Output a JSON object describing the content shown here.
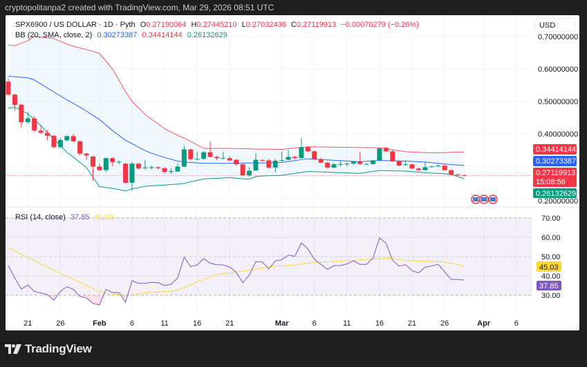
{
  "header": {
    "caption": "cryptopolitanpa2 created with TradingView.com, Mar 29, 2026 08:51 UTC"
  },
  "legend": {
    "symbol": "SPX6900 / US DOLLAR · 1D · Pyth",
    "o_label": "O",
    "o": "0.27190064",
    "h_label": "H",
    "h": "0.27445210",
    "l_label": "L",
    "l": "0.27032436",
    "c_label": "C",
    "c": "0.27119913",
    "change": "−0.00070279 (−0.26%)",
    "bb_label": "BB (20, SMA, close, 2)",
    "bb_basis": "0.30273387",
    "bb_upper": "0.34414144",
    "bb_lower": "0.26132629",
    "rsi_label": "RSI (14, close)",
    "rsi_value": "37.85",
    "rsi_ma_value": "45.03"
  },
  "currency_button": "USD",
  "price_axis": {
    "ticks": [
      {
        "v": 0.7,
        "label": "0.70000000"
      },
      {
        "v": 0.6,
        "label": "0.60000000"
      },
      {
        "v": 0.5,
        "label": "0.50000000"
      },
      {
        "v": 0.4,
        "label": "0.40000000"
      },
      {
        "v": 0.2,
        "label": "0.20000000"
      }
    ],
    "tags": {
      "bb_upper": "0.34414144",
      "bb_basis": "0.30273387",
      "last_price": "0.27119913",
      "countdown": "15:08:56",
      "bb_lower": "0.26132629"
    }
  },
  "rsi_axis": {
    "ticks": [
      {
        "v": 70,
        "label": "70.00"
      },
      {
        "v": 60,
        "label": "60.00"
      },
      {
        "v": 50,
        "label": "50.00"
      },
      {
        "v": 40,
        "label": "40.00"
      },
      {
        "v": 30,
        "label": "30.00"
      }
    ],
    "tags": {
      "rsi_ma": "45.03",
      "rsi": "37.85"
    }
  },
  "time_axis": {
    "ticks": [
      {
        "d": "01-21",
        "label": "21"
      },
      {
        "d": "01-26",
        "label": "26"
      },
      {
        "d": "02-01",
        "label": "Feb",
        "bold": true
      },
      {
        "d": "02-06",
        "label": "6"
      },
      {
        "d": "02-11",
        "label": "11"
      },
      {
        "d": "02-16",
        "label": "16"
      },
      {
        "d": "02-21",
        "label": "21"
      },
      {
        "d": "03-01",
        "label": "Mar",
        "bold": true
      },
      {
        "d": "03-06",
        "label": "6"
      },
      {
        "d": "03-11",
        "label": "11"
      },
      {
        "d": "03-16",
        "label": "16"
      },
      {
        "d": "03-21",
        "label": "21"
      },
      {
        "d": "03-26",
        "label": "26"
      },
      {
        "d": "04-01",
        "label": "Apr",
        "bold": true
      },
      {
        "d": "04-06",
        "label": "6"
      }
    ]
  },
  "colors": {
    "up": "#089981",
    "down": "#f23645",
    "bb_upper": "#f7525f",
    "bb_basis": "#2962ff",
    "bb_lower": "#089981",
    "rsi": "#7e57c2",
    "rsi_ma": "#fdd835",
    "frame": "#1e1e1e"
  },
  "footer": {
    "brand": "TradingView"
  },
  "chart_data": {
    "type": "candlestick",
    "year": 2026,
    "price_ylim": [
      0.2,
      0.7
    ],
    "candles": [
      {
        "d": "01-18",
        "o": 0.561,
        "h": 0.571,
        "l": 0.518,
        "c": 0.521
      },
      {
        "d": "01-19",
        "o": 0.521,
        "h": 0.524,
        "l": 0.471,
        "c": 0.489
      },
      {
        "d": "01-20",
        "o": 0.49,
        "h": 0.493,
        "l": 0.418,
        "c": 0.436
      },
      {
        "d": "01-21",
        "o": 0.436,
        "h": 0.467,
        "l": 0.432,
        "c": 0.448
      },
      {
        "d": "01-22",
        "o": 0.447,
        "h": 0.455,
        "l": 0.405,
        "c": 0.41
      },
      {
        "d": "01-23",
        "o": 0.41,
        "h": 0.428,
        "l": 0.4,
        "c": 0.403
      },
      {
        "d": "01-24",
        "o": 0.403,
        "h": 0.412,
        "l": 0.38,
        "c": 0.394
      },
      {
        "d": "01-25",
        "o": 0.394,
        "h": 0.396,
        "l": 0.356,
        "c": 0.359
      },
      {
        "d": "01-26",
        "o": 0.359,
        "h": 0.388,
        "l": 0.356,
        "c": 0.381
      },
      {
        "d": "01-27",
        "o": 0.38,
        "h": 0.395,
        "l": 0.377,
        "c": 0.393
      },
      {
        "d": "01-28",
        "o": 0.393,
        "h": 0.399,
        "l": 0.374,
        "c": 0.377
      },
      {
        "d": "01-29",
        "o": 0.377,
        "h": 0.38,
        "l": 0.334,
        "c": 0.339
      },
      {
        "d": "01-30",
        "o": 0.339,
        "h": 0.342,
        "l": 0.319,
        "c": 0.333
      },
      {
        "d": "01-31",
        "o": 0.33,
        "h": 0.333,
        "l": 0.256,
        "c": 0.299
      },
      {
        "d": "02-01",
        "o": 0.299,
        "h": 0.308,
        "l": 0.285,
        "c": 0.288
      },
      {
        "d": "02-02",
        "o": 0.288,
        "h": 0.327,
        "l": 0.282,
        "c": 0.325
      },
      {
        "d": "02-03",
        "o": 0.325,
        "h": 0.328,
        "l": 0.3,
        "c": 0.313
      },
      {
        "d": "02-04",
        "o": 0.313,
        "h": 0.318,
        "l": 0.306,
        "c": 0.314
      },
      {
        "d": "02-05",
        "o": 0.308,
        "h": 0.311,
        "l": 0.247,
        "c": 0.249
      },
      {
        "d": "02-06",
        "o": 0.249,
        "h": 0.313,
        "l": 0.226,
        "c": 0.308
      },
      {
        "d": "02-07",
        "o": 0.308,
        "h": 0.31,
        "l": 0.29,
        "c": 0.293
      },
      {
        "d": "02-08",
        "o": 0.294,
        "h": 0.318,
        "l": 0.29,
        "c": 0.296
      },
      {
        "d": "02-09",
        "o": 0.295,
        "h": 0.302,
        "l": 0.29,
        "c": 0.297
      },
      {
        "d": "02-10",
        "o": 0.297,
        "h": 0.3,
        "l": 0.29,
        "c": 0.294
      },
      {
        "d": "02-11",
        "o": 0.294,
        "h": 0.297,
        "l": 0.278,
        "c": 0.283
      },
      {
        "d": "02-12",
        "o": 0.284,
        "h": 0.294,
        "l": 0.276,
        "c": 0.285
      },
      {
        "d": "02-13",
        "o": 0.284,
        "h": 0.31,
        "l": 0.282,
        "c": 0.299
      },
      {
        "d": "02-14",
        "o": 0.299,
        "h": 0.364,
        "l": 0.297,
        "c": 0.352
      },
      {
        "d": "02-15",
        "o": 0.352,
        "h": 0.354,
        "l": 0.318,
        "c": 0.322
      },
      {
        "d": "02-16",
        "o": 0.322,
        "h": 0.345,
        "l": 0.318,
        "c": 0.323
      },
      {
        "d": "02-17",
        "o": 0.323,
        "h": 0.347,
        "l": 0.32,
        "c": 0.343
      },
      {
        "d": "02-18",
        "o": 0.343,
        "h": 0.377,
        "l": 0.327,
        "c": 0.329
      },
      {
        "d": "02-19",
        "o": 0.329,
        "h": 0.333,
        "l": 0.318,
        "c": 0.325
      },
      {
        "d": "02-20",
        "o": 0.325,
        "h": 0.345,
        "l": 0.321,
        "c": 0.326
      },
      {
        "d": "02-21",
        "o": 0.325,
        "h": 0.33,
        "l": 0.316,
        "c": 0.318
      },
      {
        "d": "02-22",
        "o": 0.32,
        "h": 0.322,
        "l": 0.302,
        "c": 0.306
      },
      {
        "d": "02-23",
        "o": 0.306,
        "h": 0.308,
        "l": 0.27,
        "c": 0.272
      },
      {
        "d": "02-24",
        "o": 0.272,
        "h": 0.297,
        "l": 0.268,
        "c": 0.286
      },
      {
        "d": "02-25",
        "o": 0.287,
        "h": 0.34,
        "l": 0.285,
        "c": 0.32
      },
      {
        "d": "02-26",
        "o": 0.319,
        "h": 0.322,
        "l": 0.314,
        "c": 0.318
      },
      {
        "d": "02-27",
        "o": 0.318,
        "h": 0.323,
        "l": 0.292,
        "c": 0.296
      },
      {
        "d": "02-28",
        "o": 0.296,
        "h": 0.323,
        "l": 0.281,
        "c": 0.317
      },
      {
        "d": "03-01",
        "o": 0.317,
        "h": 0.345,
        "l": 0.314,
        "c": 0.319
      },
      {
        "d": "03-02",
        "o": 0.32,
        "h": 0.35,
        "l": 0.318,
        "c": 0.329
      },
      {
        "d": "03-03",
        "o": 0.329,
        "h": 0.332,
        "l": 0.322,
        "c": 0.325
      },
      {
        "d": "03-04",
        "o": 0.325,
        "h": 0.387,
        "l": 0.323,
        "c": 0.359
      },
      {
        "d": "03-05",
        "o": 0.359,
        "h": 0.362,
        "l": 0.344,
        "c": 0.346
      },
      {
        "d": "03-06",
        "o": 0.346,
        "h": 0.349,
        "l": 0.318,
        "c": 0.322
      },
      {
        "d": "03-07",
        "o": 0.322,
        "h": 0.327,
        "l": 0.309,
        "c": 0.311
      },
      {
        "d": "03-08",
        "o": 0.311,
        "h": 0.314,
        "l": 0.294,
        "c": 0.296
      },
      {
        "d": "03-09",
        "o": 0.296,
        "h": 0.31,
        "l": 0.294,
        "c": 0.306
      },
      {
        "d": "03-10",
        "o": 0.306,
        "h": 0.317,
        "l": 0.3,
        "c": 0.307
      },
      {
        "d": "03-11",
        "o": 0.306,
        "h": 0.311,
        "l": 0.3,
        "c": 0.308
      },
      {
        "d": "03-12",
        "o": 0.308,
        "h": 0.316,
        "l": 0.305,
        "c": 0.314
      },
      {
        "d": "03-13",
        "o": 0.314,
        "h": 0.345,
        "l": 0.305,
        "c": 0.307
      },
      {
        "d": "03-14",
        "o": 0.307,
        "h": 0.31,
        "l": 0.304,
        "c": 0.307
      },
      {
        "d": "03-15",
        "o": 0.307,
        "h": 0.32,
        "l": 0.305,
        "c": 0.318
      },
      {
        "d": "03-16",
        "o": 0.318,
        "h": 0.357,
        "l": 0.316,
        "c": 0.355
      },
      {
        "d": "03-17",
        "o": 0.357,
        "h": 0.359,
        "l": 0.343,
        "c": 0.346
      },
      {
        "d": "03-18",
        "o": 0.346,
        "h": 0.35,
        "l": 0.313,
        "c": 0.315
      },
      {
        "d": "03-19",
        "o": 0.315,
        "h": 0.318,
        "l": 0.3,
        "c": 0.302
      },
      {
        "d": "03-20",
        "o": 0.304,
        "h": 0.318,
        "l": 0.302,
        "c": 0.306
      },
      {
        "d": "03-21",
        "o": 0.306,
        "h": 0.308,
        "l": 0.291,
        "c": 0.293
      },
      {
        "d": "03-22",
        "o": 0.293,
        "h": 0.296,
        "l": 0.286,
        "c": 0.288
      },
      {
        "d": "03-23",
        "o": 0.288,
        "h": 0.312,
        "l": 0.287,
        "c": 0.297
      },
      {
        "d": "03-24",
        "o": 0.299,
        "h": 0.303,
        "l": 0.297,
        "c": 0.299
      },
      {
        "d": "03-25",
        "o": 0.3,
        "h": 0.306,
        "l": 0.298,
        "c": 0.302
      },
      {
        "d": "03-26",
        "o": 0.302,
        "h": 0.305,
        "l": 0.286,
        "c": 0.288
      },
      {
        "d": "03-27",
        "o": 0.288,
        "h": 0.29,
        "l": 0.272,
        "c": 0.274
      },
      {
        "d": "03-28",
        "o": 0.2745,
        "h": 0.277,
        "l": 0.27,
        "c": 0.2719
      },
      {
        "d": "03-29",
        "o": 0.27190064,
        "h": 0.2744521,
        "l": 0.27032436,
        "c": 0.27119913
      }
    ],
    "bollinger": [
      {
        "d": "01-18",
        "upper": 0.674,
        "basis": 0.577,
        "lower": 0.479
      },
      {
        "d": "01-19",
        "upper": 0.672,
        "basis": 0.576,
        "lower": 0.482
      },
      {
        "d": "01-21",
        "upper": 0.687,
        "basis": 0.573,
        "lower": 0.462
      },
      {
        "d": "01-22",
        "upper": 0.7,
        "basis": 0.566,
        "lower": 0.445
      },
      {
        "d": "01-25",
        "upper": 0.694,
        "basis": 0.529,
        "lower": 0.384
      },
      {
        "d": "01-27",
        "upper": 0.677,
        "basis": 0.505,
        "lower": 0.343
      },
      {
        "d": "01-28",
        "upper": 0.67,
        "basis": 0.494,
        "lower": 0.328
      },
      {
        "d": "01-30",
        "upper": 0.66,
        "basis": 0.47,
        "lower": 0.296
      },
      {
        "d": "02-01",
        "upper": 0.648,
        "basis": 0.444,
        "lower": 0.237
      },
      {
        "d": "02-03",
        "upper": 0.6,
        "basis": 0.41,
        "lower": 0.232
      },
      {
        "d": "02-05",
        "upper": 0.53,
        "basis": 0.38,
        "lower": 0.224
      },
      {
        "d": "02-06",
        "upper": 0.5,
        "basis": 0.37,
        "lower": 0.23
      },
      {
        "d": "02-08",
        "upper": 0.46,
        "basis": 0.348,
        "lower": 0.238
      },
      {
        "d": "02-09",
        "upper": 0.445,
        "basis": 0.34,
        "lower": 0.24
      },
      {
        "d": "02-11",
        "upper": 0.416,
        "basis": 0.327,
        "lower": 0.242
      },
      {
        "d": "02-13",
        "upper": 0.395,
        "basis": 0.316,
        "lower": 0.245
      },
      {
        "d": "02-14",
        "upper": 0.387,
        "basis": 0.313,
        "lower": 0.247
      },
      {
        "d": "02-17",
        "upper": 0.355,
        "basis": 0.309,
        "lower": 0.261
      },
      {
        "d": "02-21",
        "upper": 0.355,
        "basis": 0.309,
        "lower": 0.265
      },
      {
        "d": "02-24",
        "upper": 0.354,
        "basis": 0.31,
        "lower": 0.26
      },
      {
        "d": "02-25",
        "upper": 0.353,
        "basis": 0.31,
        "lower": 0.268
      },
      {
        "d": "02-26",
        "upper": 0.353,
        "basis": 0.31,
        "lower": 0.27
      },
      {
        "d": "03-01",
        "upper": 0.352,
        "basis": 0.312,
        "lower": 0.272
      },
      {
        "d": "03-05",
        "upper": 0.36,
        "basis": 0.323,
        "lower": 0.284
      },
      {
        "d": "03-13",
        "upper": 0.358,
        "basis": 0.314,
        "lower": 0.278
      },
      {
        "d": "03-16",
        "upper": 0.357,
        "basis": 0.318,
        "lower": 0.287
      },
      {
        "d": "03-20",
        "upper": 0.345,
        "basis": 0.316,
        "lower": 0.285
      },
      {
        "d": "03-23",
        "upper": 0.342,
        "basis": 0.313,
        "lower": 0.28
      },
      {
        "d": "03-25",
        "upper": 0.341,
        "basis": 0.309,
        "lower": 0.278
      },
      {
        "d": "03-27",
        "upper": 0.343,
        "basis": 0.305,
        "lower": 0.275
      },
      {
        "d": "03-29",
        "upper": 0.34414144,
        "basis": 0.30273387,
        "lower": 0.26132629
      }
    ],
    "rsi_ylim": [
      25,
      75
    ],
    "rsi_levels": [
      70,
      50,
      30
    ],
    "rsi": [
      45.4,
      38.9,
      33.2,
      35.3,
      32,
      31.2,
      30.3,
      27.4,
      32,
      34.5,
      33,
      29.4,
      28.6,
      25.8,
      25,
      33,
      31.4,
      31.4,
      26.4,
      37.5,
      36.2,
      36.2,
      36.7,
      36.5,
      35,
      35.7,
      38.9,
      49.8,
      44.8,
      45.7,
      49,
      46.6,
      45.8,
      45.7,
      44.6,
      41.9,
      36.5,
      40.4,
      47.4,
      47.2,
      43.6,
      47.8,
      48.4,
      50.8,
      50.2,
      57.1,
      54,
      48.6,
      46,
      43.4,
      45.3,
      45.4,
      46.2,
      47.8,
      46,
      46,
      49.3,
      59.7,
      56.9,
      48.1,
      45.1,
      45.8,
      42.7,
      41.6,
      44.5,
      45.2,
      46,
      42.1,
      38.2,
      38.2,
      37.85
    ],
    "rsi_ma": [
      54.6,
      52.9,
      51.2,
      49.5,
      47.9,
      46.2,
      44.6,
      42.9,
      41.3,
      39.7,
      38.2,
      36.6,
      35.0,
      33.4,
      31.9,
      31.0,
      30.7,
      30.4,
      30.2,
      30.2,
      30.8,
      31.3,
      31.5,
      31.7,
      31.9,
      32.1,
      32.9,
      33.9,
      35.4,
      37.0,
      38.3,
      39.3,
      40.7,
      41.2,
      41.6,
      42.0,
      42.5,
      43.0,
      43.6,
      44.1,
      44.8,
      45.0,
      45.2,
      45.5,
      45.7,
      46.1,
      46.6,
      47.0,
      47.2,
      47.3,
      47.5,
      47.7,
      47.9,
      48.1,
      48.3,
      48.5,
      48.7,
      48.9,
      49.2,
      49.1,
      48.5,
      48.0,
      47.9,
      47.7,
      47.6,
      47.5,
      47.4,
      47.1,
      46.5,
      45.9,
      45.03
    ],
    "last_price": 0.27119913,
    "grid": true
  }
}
